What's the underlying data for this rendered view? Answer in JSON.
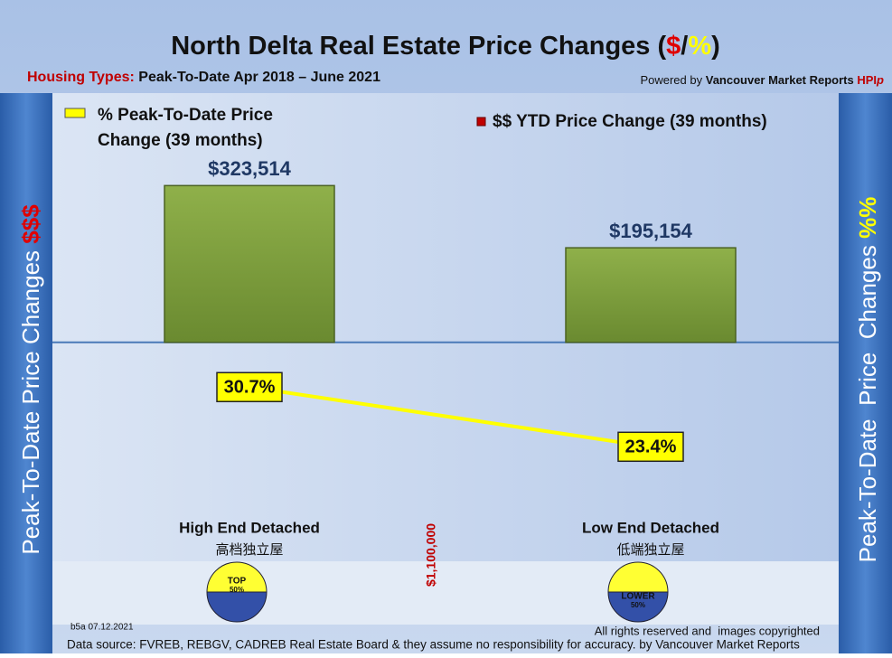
{
  "chart_data": {
    "type": "bar",
    "title_parts": [
      "North Delta Real Estate Price Changes (",
      "$",
      "/",
      "%",
      ")"
    ],
    "subtitle_parts": [
      "Housing Types:",
      "Peak-To-Date Apr 2018 – June 2021"
    ],
    "credit_parts": [
      "Powered by",
      "Vancouver Market Reports",
      "HPI",
      "p"
    ],
    "left_axis_parts": [
      "Peak-To-Date Price Changes",
      "$$$"
    ],
    "right_axis_parts": [
      "Peak-To-Date  Price  Changes",
      "%%"
    ],
    "categories": [
      "High End Detached",
      "Low End Detached"
    ],
    "category_subtitles": [
      "高档独立屋",
      "低端独立屋"
    ],
    "divider_label": "$1,100,000",
    "badges": [
      [
        "TOP",
        "50%"
      ],
      [
        "LOWER",
        "50%"
      ]
    ],
    "ylim": [
      -450000,
      520000
    ],
    "y2lim": [
      9.5,
      67
    ],
    "series": [
      {
        "name": "% Peak-To-Date Price Change (39 months)",
        "type": "line",
        "axis": "y2",
        "color": "#ffff00",
        "values": [
          30.7,
          23.4
        ],
        "value_labels": [
          "30.7%",
          "23.4%"
        ]
      },
      {
        "name": "$$ YTD Price Change (39 months)",
        "type": "bar",
        "color": "#77933c",
        "values": [
          323514,
          195154
        ],
        "value_labels": [
          "$323,514",
          "$195,154"
        ]
      }
    ],
    "footer": {
      "code": "b5a 07.12.2021",
      "rights": "All rights reserved and  images copyrighted",
      "source": "Data source: FVREB, REBGV, CADREB Real Estate Board & they assume no responsibility for accuracy. by Vancouver Market Reports"
    }
  }
}
